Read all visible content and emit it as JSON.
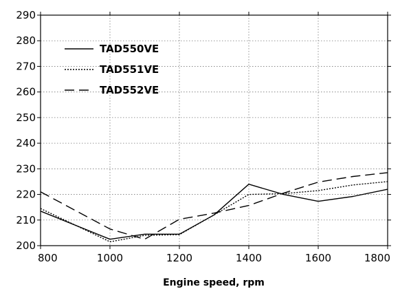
{
  "chart_data": {
    "type": "line",
    "title": "",
    "xlabel": "Engine speed, rpm",
    "ylabel": "",
    "xlim": [
      800,
      1800
    ],
    "ylim": [
      200,
      290
    ],
    "x_ticks": [
      800,
      1000,
      1200,
      1400,
      1600,
      1800
    ],
    "y_ticks": [
      200,
      210,
      220,
      230,
      240,
      250,
      260,
      270,
      280,
      290
    ],
    "grid": true,
    "legend_position": "top-left",
    "series": [
      {
        "name": "TAD550VE",
        "dash": "solid",
        "x": [
          800,
          1000,
          1100,
          1200,
          1300,
          1400,
          1500,
          1600,
          1700,
          1800
        ],
        "y": [
          213.5,
          202.5,
          204.5,
          204.5,
          212,
          224,
          220,
          217.3,
          219.2,
          222
        ]
      },
      {
        "name": "TAD551VE",
        "dash": "dotted",
        "x": [
          800,
          1000,
          1100,
          1200,
          1300,
          1400,
          1500,
          1600,
          1700,
          1800
        ],
        "y": [
          214.5,
          201.5,
          204,
          204.3,
          212,
          220,
          220.3,
          221.5,
          223.7,
          225
        ]
      },
      {
        "name": "TAD552VE",
        "dash": "dashed",
        "x": [
          800,
          1000,
          1100,
          1200,
          1300,
          1400,
          1500,
          1600,
          1700,
          1800
        ],
        "y": [
          221,
          206.5,
          202.5,
          210.3,
          212.7,
          215.7,
          220.5,
          224.8,
          227,
          228.5
        ]
      }
    ]
  }
}
